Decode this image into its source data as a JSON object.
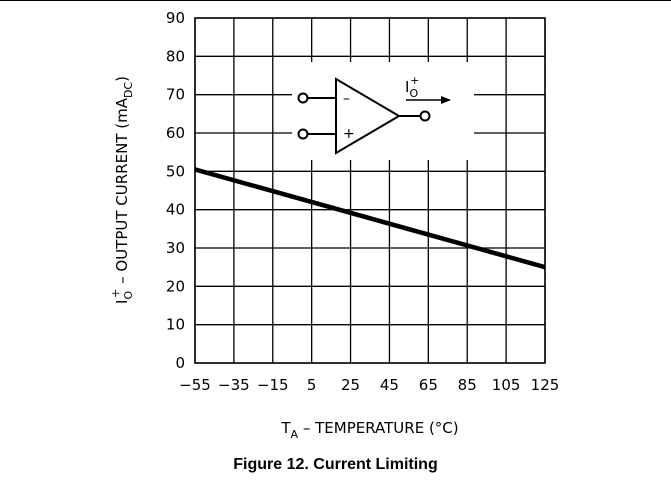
{
  "caption": "Figure 12. Current Limiting",
  "chart_data": {
    "type": "line",
    "title": "",
    "xlabel": {
      "main": "T",
      "sub": "A",
      "rest": " – TEMPERATURE (°C)"
    },
    "ylabel": {
      "main": "I",
      "sub": "O",
      "sup": "+",
      "rest": " – OUTPUT CURRENT (mA",
      "unit_sub": "DC",
      "close": ")"
    },
    "xlim": [
      -55,
      125
    ],
    "ylim": [
      0,
      90
    ],
    "x_ticks": [
      "-55",
      "-35",
      "-15",
      "5",
      "25",
      "45",
      "65",
      "85",
      "105",
      "125"
    ],
    "y_ticks": [
      "0",
      "10",
      "20",
      "30",
      "40",
      "50",
      "60",
      "70",
      "80",
      "90"
    ],
    "grid": true,
    "series": [
      {
        "x": [
          -55,
          125
        ],
        "y": [
          50.5,
          25.0
        ]
      }
    ],
    "inset": {
      "type": "op-amp-symbol",
      "minus_label": "–",
      "plus_label": "+",
      "current_label": {
        "main": "I",
        "sub": "O",
        "sup": "+"
      }
    }
  }
}
